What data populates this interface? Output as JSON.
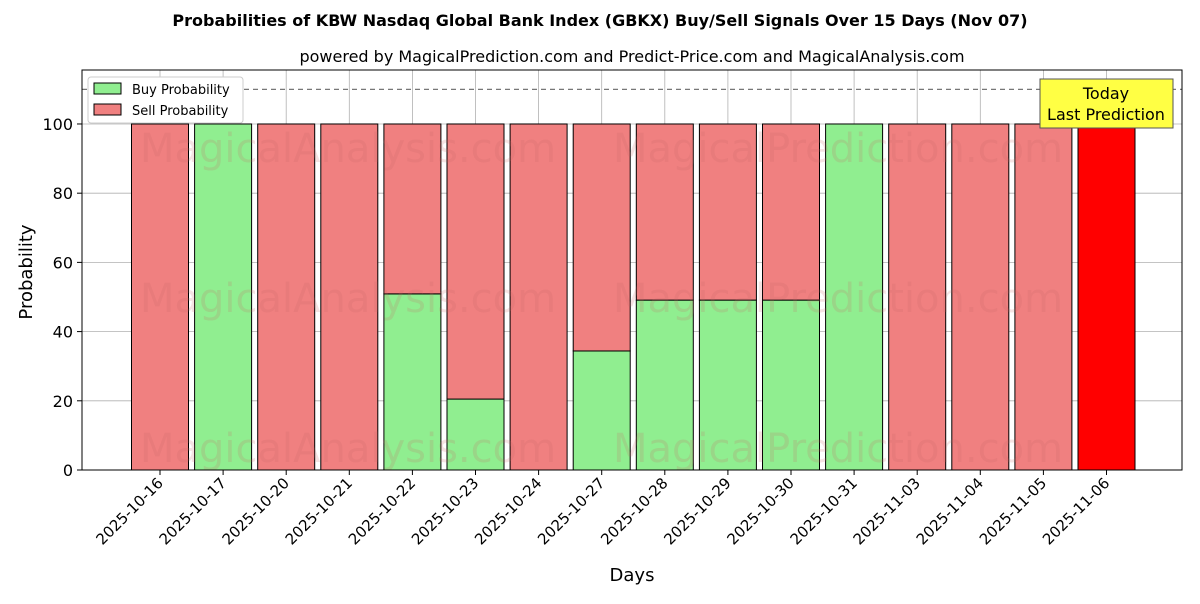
{
  "chart_data": {
    "type": "bar",
    "title": "Probabilities of KBW Nasdaq Global Bank Index (GBKX) Buy/Sell Signals Over 15 Days (Nov 07)",
    "subtitle": "powered by MagicalPrediction.com and Predict-Price.com and MagicalAnalysis.com",
    "xlabel": "Days",
    "ylabel": "Probability",
    "ylim": [
      0,
      115.6
    ],
    "yticks": [
      0,
      20,
      40,
      60,
      80,
      100
    ],
    "grid": true,
    "legend_position": "top-left",
    "categories": [
      "2025-10-16",
      "2025-10-17",
      "2025-10-20",
      "2025-10-21",
      "2025-10-22",
      "2025-10-23",
      "2025-10-24",
      "2025-10-27",
      "2025-10-28",
      "2025-10-29",
      "2025-10-30",
      "2025-10-31",
      "2025-11-03",
      "2025-11-04",
      "2025-11-05",
      "2025-11-06"
    ],
    "series": [
      {
        "name": "Buy Probability",
        "color": "#90ee90",
        "values": [
          0,
          100,
          0,
          0,
          50.9,
          20.5,
          0,
          34.4,
          49.1,
          49.1,
          49.1,
          100,
          0,
          0,
          0,
          0
        ]
      },
      {
        "name": "Sell Probability",
        "color": "#f08080",
        "values": [
          100,
          0,
          100,
          100,
          49.1,
          79.5,
          100,
          65.6,
          50.9,
          50.9,
          50.9,
          0,
          100,
          100,
          100,
          100
        ]
      }
    ],
    "highlight_color": "#ff0000",
    "reference_line": 110,
    "annotation": [
      "Today",
      "Last Prediction"
    ],
    "watermarks": [
      "MagicalAnalysis.com",
      "MagicalPrediction.com"
    ]
  }
}
